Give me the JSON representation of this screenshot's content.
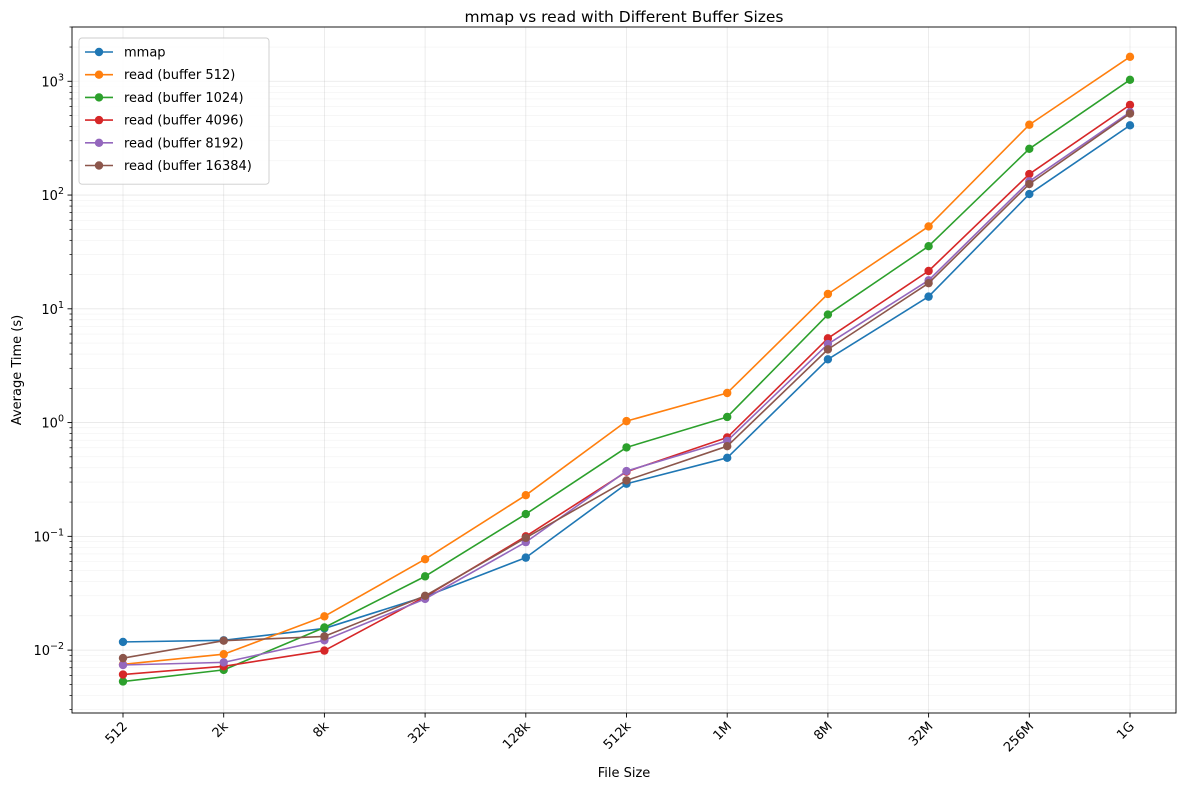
{
  "chart_data": {
    "type": "line",
    "title": "mmap vs read with Different Buffer Sizes",
    "xlabel": "File Size",
    "ylabel": "Average Time (s)",
    "yscale": "log",
    "ylim": [
      0.0028,
      3000
    ],
    "categories": [
      "512",
      "2k",
      "8k",
      "32k",
      "128k",
      "512k",
      "1M",
      "8M",
      "32M",
      "256M",
      "1G"
    ],
    "y_major_ticks": [
      {
        "value": 0.01,
        "base": "10",
        "exp": "−2"
      },
      {
        "value": 0.1,
        "base": "10",
        "exp": "−1"
      },
      {
        "value": 1,
        "base": "10",
        "exp": "0"
      },
      {
        "value": 10,
        "base": "10",
        "exp": "1"
      },
      {
        "value": 100,
        "base": "10",
        "exp": "2"
      },
      {
        "value": 1000,
        "base": "10",
        "exp": "3"
      }
    ],
    "grid": true,
    "legend_position": "top-left",
    "series": [
      {
        "name": "mmap",
        "color": "#1f77b4",
        "values": [
          0.0118,
          0.0122,
          0.0155,
          0.0295,
          0.065,
          0.29,
          0.49,
          3.6,
          12.8,
          102,
          410
        ]
      },
      {
        "name": "read (buffer 512)",
        "color": "#ff7f0e",
        "values": [
          0.0075,
          0.0092,
          0.0198,
          0.063,
          0.23,
          1.03,
          1.82,
          13.5,
          53,
          415,
          1640
        ]
      },
      {
        "name": "read (buffer 1024)",
        "color": "#2ca02c",
        "values": [
          0.0053,
          0.0067,
          0.0158,
          0.0445,
          0.157,
          0.605,
          1.12,
          8.9,
          35.5,
          255,
          1030
        ]
      },
      {
        "name": "read (buffer 4096)",
        "color": "#d62728",
        "values": [
          0.0061,
          0.0072,
          0.0099,
          0.0295,
          0.1,
          0.37,
          0.74,
          5.5,
          21.5,
          153,
          620
        ]
      },
      {
        "name": "read (buffer 8192)",
        "color": "#9467bd",
        "values": [
          0.0074,
          0.0078,
          0.0122,
          0.0282,
          0.089,
          0.375,
          0.69,
          4.9,
          17.8,
          132,
          535
        ]
      },
      {
        "name": "read (buffer 16384)",
        "color": "#8c564b",
        "values": [
          0.0085,
          0.0121,
          0.0132,
          0.03,
          0.097,
          0.31,
          0.62,
          4.4,
          16.8,
          125,
          520
        ]
      }
    ]
  }
}
